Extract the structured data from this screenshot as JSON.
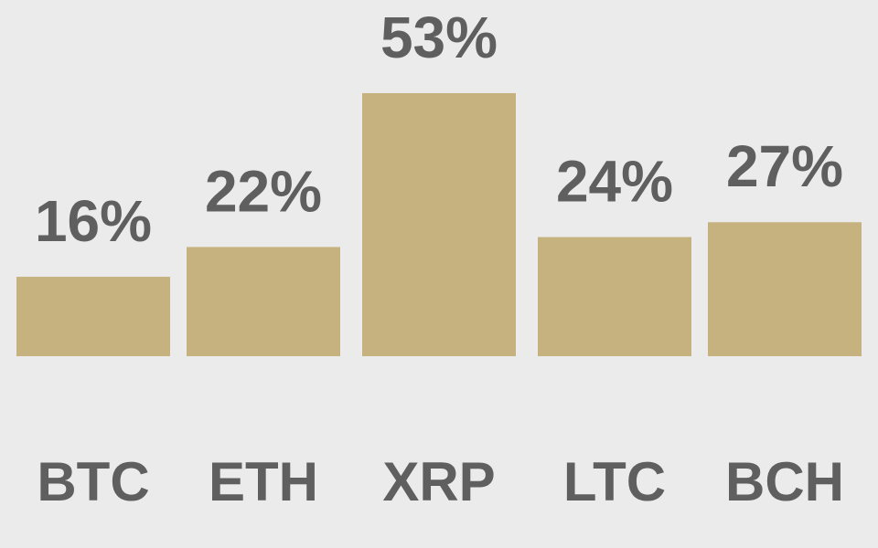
{
  "chart_data": {
    "type": "bar",
    "categories": [
      "BTC",
      "ETH",
      "XRP",
      "LTC",
      "BCH"
    ],
    "values": [
      16,
      22,
      53,
      24,
      27
    ],
    "value_labels": [
      "16%",
      "22%",
      "53%",
      "24%",
      "27%"
    ],
    "color": "#c5b27e"
  }
}
